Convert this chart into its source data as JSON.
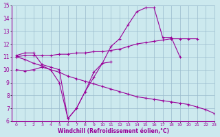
{
  "xlabel": "Windchill (Refroidissement éolien,°C)",
  "xlim": [
    -0.5,
    23
  ],
  "ylim": [
    6,
    15
  ],
  "xticks": [
    0,
    1,
    2,
    3,
    4,
    5,
    6,
    7,
    8,
    9,
    10,
    11,
    12,
    13,
    14,
    15,
    16,
    17,
    18,
    19,
    20,
    21,
    22,
    23
  ],
  "yticks": [
    6,
    7,
    8,
    9,
    10,
    11,
    12,
    13,
    14,
    15
  ],
  "bg_color": "#cce9ee",
  "line_color": "#990099",
  "grid_color": "#99bbcc",
  "lines": [
    {
      "x": [
        0,
        1,
        2,
        3,
        4,
        5,
        6,
        7,
        8,
        9,
        10,
        11,
        12,
        13,
        14,
        15,
        16,
        17,
        18,
        19
      ],
      "y": [
        11.1,
        11.3,
        11.3,
        10.4,
        10.2,
        10.0,
        6.2,
        7.0,
        8.3,
        9.4,
        10.5,
        11.8,
        12.4,
        13.5,
        14.5,
        14.8,
        14.8,
        12.5,
        12.5,
        11.0
      ]
    },
    {
      "x": [
        0,
        1,
        2,
        3,
        4,
        5,
        6,
        7,
        8,
        9,
        10,
        11,
        12,
        13,
        14,
        15,
        16,
        17,
        18,
        19,
        20,
        21
      ],
      "y": [
        11.0,
        11.1,
        11.1,
        11.1,
        11.1,
        11.2,
        11.2,
        11.3,
        11.3,
        11.4,
        11.4,
        11.5,
        11.6,
        11.8,
        12.0,
        12.1,
        12.2,
        12.3,
        12.4,
        12.4,
        12.4,
        12.4
      ]
    },
    {
      "x": [
        0,
        1,
        2,
        3,
        4,
        5,
        6,
        7,
        8,
        9,
        10,
        11,
        12,
        13,
        14,
        15,
        16,
        17,
        18,
        19,
        20,
        21,
        22,
        23
      ],
      "y": [
        11.0,
        10.8,
        10.5,
        10.3,
        10.0,
        9.8,
        9.5,
        9.3,
        9.1,
        8.9,
        8.7,
        8.5,
        8.3,
        8.1,
        7.9,
        7.8,
        7.7,
        7.6,
        7.5,
        7.4,
        7.3,
        7.1,
        6.9,
        6.6
      ]
    },
    {
      "x": [
        0,
        1,
        2,
        3,
        4,
        5,
        6,
        7,
        8,
        9,
        10,
        11
      ],
      "y": [
        10.0,
        9.9,
        10.0,
        10.2,
        10.0,
        9.0,
        6.2,
        7.0,
        8.3,
        9.8,
        10.5,
        10.6
      ]
    }
  ]
}
